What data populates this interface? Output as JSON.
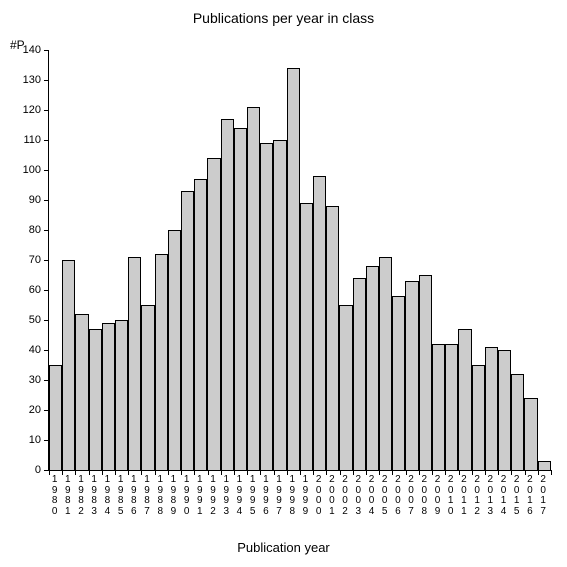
{
  "chart": {
    "type": "bar",
    "title": "Publications per year in class",
    "title_fontsize": 14,
    "y_axis_label": "#P",
    "x_axis_label": "Publication year",
    "label_fontsize": 12,
    "tick_fontsize": 11,
    "background_color": "#ffffff",
    "bar_fill_color": "#cccccc",
    "bar_border_color": "#000000",
    "axis_color": "#000000",
    "bar_width": 1.0,
    "ylim": [
      0,
      140
    ],
    "ytick_step": 10,
    "yticks": [
      0,
      10,
      20,
      30,
      40,
      50,
      60,
      70,
      80,
      90,
      100,
      110,
      120,
      130,
      140
    ],
    "categories": [
      "1980",
      "1981",
      "1982",
      "1983",
      "1984",
      "1985",
      "1986",
      "1987",
      "1988",
      "1989",
      "1990",
      "1991",
      "1992",
      "1993",
      "1994",
      "1995",
      "1996",
      "1997",
      "1998",
      "1999",
      "2000",
      "2001",
      "2002",
      "2003",
      "2004",
      "2005",
      "2006",
      "2007",
      "2008",
      "2009",
      "2010",
      "2011",
      "2012",
      "2013",
      "2014",
      "2015",
      "2016",
      "2017"
    ],
    "values": [
      35,
      70,
      52,
      47,
      49,
      50,
      71,
      55,
      72,
      80,
      93,
      97,
      104,
      117,
      114,
      121,
      109,
      110,
      134,
      89,
      98,
      88,
      55,
      64,
      68,
      71,
      58,
      63,
      65,
      42,
      42,
      47,
      35,
      41,
      40,
      32,
      24,
      3
    ]
  }
}
